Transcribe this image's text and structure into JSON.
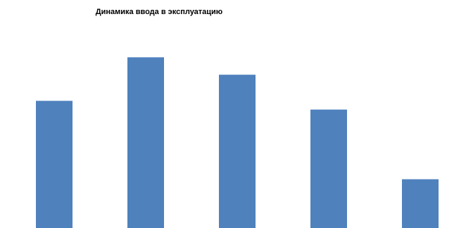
{
  "chart_data": {
    "type": "bar",
    "title": "Динамика ввода в эксплуатацию",
    "categories": [
      "",
      "",
      "",
      "",
      ""
    ],
    "values": [
      73,
      98,
      88,
      68,
      28
    ],
    "ylim": [
      0,
      122
    ],
    "grid": false,
    "bar_color": "#4F81BD"
  }
}
